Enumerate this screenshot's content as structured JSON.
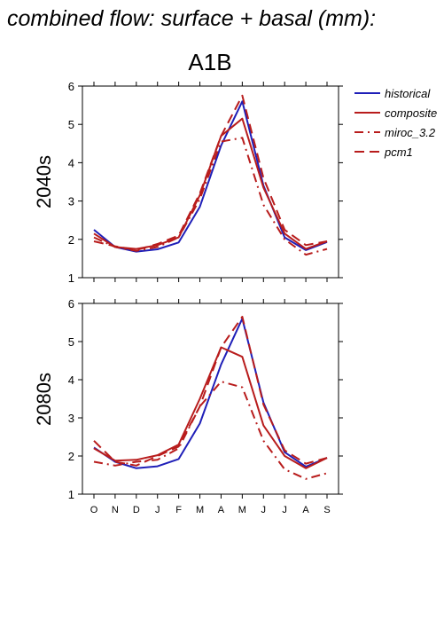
{
  "figure": {
    "title": "combined flow: surface + basal (mm):",
    "scenario": "A1B",
    "colors": {
      "historical": "#1f1fb8",
      "model": "#b81c1c"
    }
  },
  "legend": [
    {
      "name": "historical",
      "color": "#1f1fb8",
      "dash": "solid"
    },
    {
      "name": "composite",
      "color": "#b81c1c",
      "dash": "solid"
    },
    {
      "name": "miroc_3.2",
      "color": "#b81c1c",
      "dash": "dashdot"
    },
    {
      "name": "pcm1",
      "color": "#b81c1c",
      "dash": "dash"
    }
  ],
  "chart_data": [
    {
      "type": "line",
      "panel_label": "2040s",
      "categories": [
        "O",
        "N",
        "D",
        "J",
        "F",
        "M",
        "A",
        "M",
        "J",
        "J",
        "A",
        "S"
      ],
      "ylim": [
        1,
        6
      ],
      "yticks": [
        1,
        2,
        3,
        4,
        5,
        6
      ],
      "series": [
        {
          "name": "historical",
          "values": [
            2.25,
            1.8,
            1.68,
            1.74,
            1.92,
            2.85,
            4.45,
            5.6,
            3.4,
            2.05,
            1.72,
            1.93
          ]
        },
        {
          "name": "composite",
          "values": [
            2.15,
            1.8,
            1.75,
            1.85,
            2.05,
            3.15,
            4.7,
            5.15,
            3.35,
            2.15,
            1.75,
            1.95
          ]
        },
        {
          "name": "miroc_3.2",
          "values": [
            2.05,
            1.8,
            1.7,
            1.8,
            2.05,
            3.05,
            4.55,
            4.65,
            2.9,
            2.0,
            1.6,
            1.75
          ]
        },
        {
          "name": "pcm1",
          "values": [
            1.95,
            1.82,
            1.72,
            1.88,
            2.1,
            3.2,
            4.7,
            5.75,
            3.6,
            2.25,
            1.85,
            1.95
          ]
        }
      ]
    },
    {
      "type": "line",
      "panel_label": "2080s",
      "categories": [
        "O",
        "N",
        "D",
        "J",
        "F",
        "M",
        "A",
        "M",
        "J",
        "J",
        "A",
        "S"
      ],
      "ylim": [
        1,
        6
      ],
      "yticks": [
        1,
        2,
        3,
        4,
        5,
        6
      ],
      "series": [
        {
          "name": "historical",
          "values": [
            2.22,
            1.85,
            1.68,
            1.73,
            1.92,
            2.85,
            4.4,
            5.6,
            3.4,
            2.1,
            1.72,
            1.95
          ]
        },
        {
          "name": "composite",
          "values": [
            2.2,
            1.88,
            1.9,
            2.02,
            2.3,
            3.5,
            4.85,
            4.6,
            2.8,
            2.0,
            1.68,
            1.95
          ]
        },
        {
          "name": "miroc_3.2",
          "values": [
            1.85,
            1.75,
            1.85,
            1.9,
            2.2,
            3.3,
            3.95,
            3.8,
            2.4,
            1.65,
            1.4,
            1.55
          ]
        },
        {
          "name": "pcm1",
          "values": [
            2.4,
            1.85,
            1.75,
            2.0,
            2.25,
            3.3,
            4.85,
            5.65,
            3.35,
            2.15,
            1.8,
            1.95
          ]
        }
      ]
    }
  ]
}
